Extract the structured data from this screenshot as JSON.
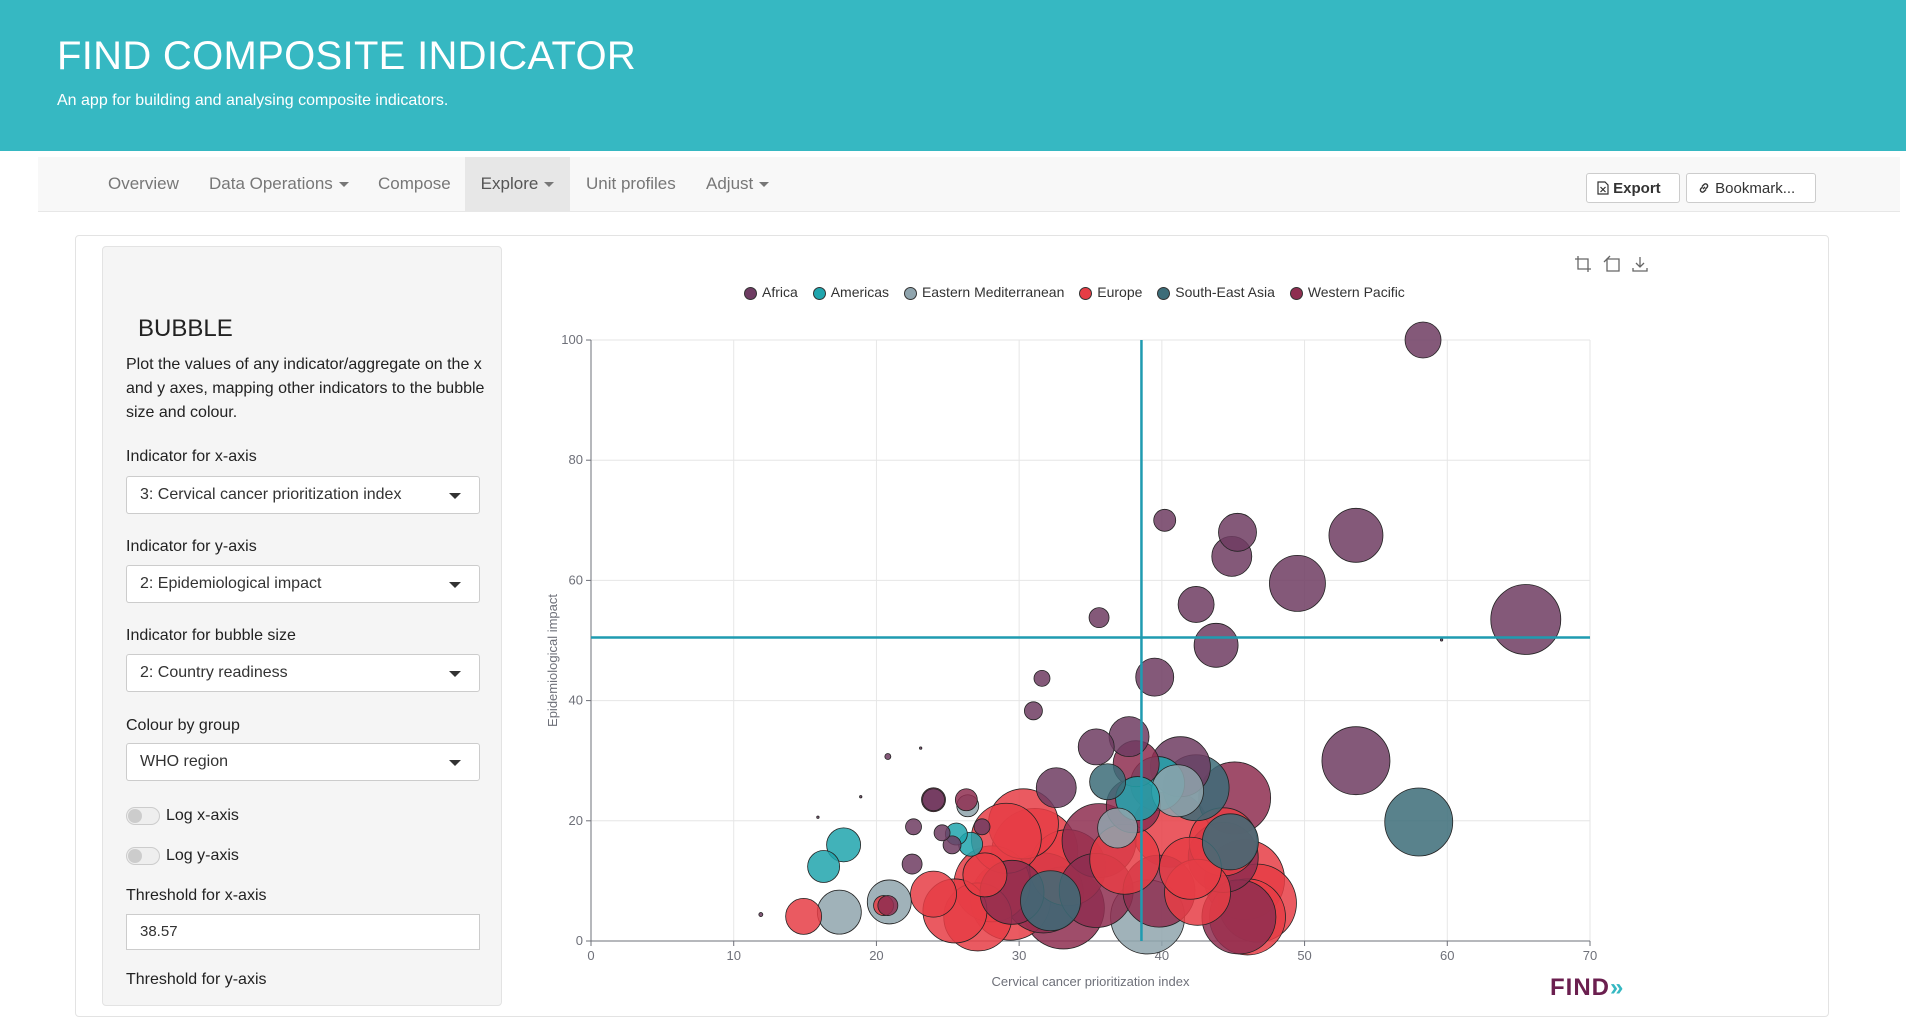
{
  "header": {
    "title": "FIND COMPOSITE INDICATOR",
    "subtitle": "An app for building and analysing composite indicators."
  },
  "nav": {
    "items": [
      {
        "label": "Overview",
        "dropdown": false
      },
      {
        "label": "Data Operations",
        "dropdown": true
      },
      {
        "label": "Compose",
        "dropdown": false
      },
      {
        "label": "Explore",
        "dropdown": true,
        "active": true
      },
      {
        "label": "Unit profiles",
        "dropdown": false
      },
      {
        "label": "Adjust",
        "dropdown": true
      }
    ],
    "export_label": "Export",
    "bookmark_label": "Bookmark..."
  },
  "sidebar": {
    "title": "BUBBLE",
    "description": "Plot the values of any indicator/aggregate on the x and y axes, mapping other indicators to the bubble size and colour.",
    "x_label": "Indicator for x-axis",
    "x_value": "3: Cervical cancer prioritization index",
    "y_label": "Indicator for y-axis",
    "y_value": "2: Epidemiological impact",
    "size_label": "Indicator for bubble size",
    "size_value": "2: Country readiness",
    "colour_label": "Colour by group",
    "colour_value": "WHO region",
    "log_x_label": "Log x-axis",
    "log_y_label": "Log y-axis",
    "threshold_x_label": "Threshold for x-axis",
    "threshold_x_value": "38.57",
    "threshold_y_label": "Threshold for y-axis"
  },
  "logo": {
    "text": "FIND",
    "mark": "»"
  },
  "chart_data": {
    "type": "scatter",
    "xlabel": "Cervical cancer prioritization index",
    "ylabel": "Epidemiological impact",
    "xlim": [
      0,
      70
    ],
    "ylim": [
      0,
      100
    ],
    "xticks": [
      0,
      10,
      20,
      30,
      40,
      50,
      60,
      70
    ],
    "yticks": [
      0,
      20,
      40,
      60,
      80,
      100
    ],
    "grid": true,
    "legend_position": "top",
    "threshold_x": 38.57,
    "threshold_y": 50.5,
    "series": [
      {
        "name": "Africa",
        "color": "#6e3c62",
        "points": [
          [
            58.3,
            100,
            18
          ],
          [
            40.2,
            70,
            11
          ],
          [
            45.3,
            68,
            19
          ],
          [
            53.6,
            67.5,
            27
          ],
          [
            44.9,
            64,
            20
          ],
          [
            49.5,
            59.5,
            28
          ],
          [
            42.4,
            56,
            18
          ],
          [
            65.5,
            53.5,
            35
          ],
          [
            35.6,
            53.8,
            10
          ],
          [
            43.8,
            49.2,
            22
          ],
          [
            59.6,
            50.1,
            0
          ],
          [
            39.5,
            43.9,
            19
          ],
          [
            31.6,
            43.7,
            8
          ],
          [
            31.0,
            38.3,
            9
          ],
          [
            37.7,
            34,
            20
          ],
          [
            53.6,
            30,
            34
          ],
          [
            35.4,
            32.3,
            18
          ],
          [
            41.3,
            29,
            30
          ],
          [
            32.6,
            25.5,
            20
          ],
          [
            24.0,
            23.5,
            11
          ],
          [
            27.4,
            19,
            8
          ],
          [
            24.6,
            18,
            8
          ],
          [
            22.6,
            19,
            8
          ],
          [
            25.3,
            16,
            9
          ],
          [
            22.5,
            12.8,
            10
          ],
          [
            18.9,
            24,
            1
          ],
          [
            20.8,
            30.7,
            3
          ],
          [
            23.1,
            32.1,
            1
          ],
          [
            11.9,
            4.4,
            2
          ],
          [
            15.9,
            20.6,
            1
          ]
        ]
      },
      {
        "name": "Americas",
        "color": "#20a5ad",
        "points": [
          [
            17.7,
            16,
            17
          ],
          [
            16.3,
            12.4,
            16
          ],
          [
            25.6,
            17.8,
            11
          ],
          [
            26.6,
            16.1,
            12
          ],
          [
            38.3,
            23.7,
            22
          ],
          [
            39.7,
            26.2,
            27
          ]
        ]
      },
      {
        "name": "Eastern Mediterranean",
        "color": "#8fa4ad",
        "points": [
          [
            26.4,
            22.5,
            11
          ],
          [
            20.9,
            6.5,
            22
          ],
          [
            17.4,
            4.8,
            22
          ],
          [
            39.0,
            4,
            37
          ],
          [
            41.1,
            25,
            26
          ],
          [
            36.9,
            18.8,
            20
          ]
        ]
      },
      {
        "name": "Europe",
        "color": "#e63d45",
        "points": [
          [
            14.9,
            4.1,
            18
          ],
          [
            20.5,
            5.9,
            10
          ],
          [
            27.1,
            4,
            34
          ],
          [
            25.5,
            5,
            32
          ],
          [
            29.4,
            6.8,
            40
          ],
          [
            31.1,
            14.9,
            43
          ],
          [
            33.4,
            12.2,
            38
          ],
          [
            28.1,
            9.5,
            38
          ],
          [
            30.3,
            19.5,
            35
          ],
          [
            42.5,
            8.1,
            33
          ],
          [
            44.3,
            16.5,
            34
          ],
          [
            45.8,
            10.2,
            40
          ],
          [
            46.0,
            4,
            38
          ],
          [
            46.7,
            6.3,
            39
          ],
          [
            40.6,
            18.6,
            38
          ],
          [
            37.4,
            13.6,
            35
          ],
          [
            24.0,
            7.8,
            23
          ],
          [
            27.6,
            11,
            22
          ],
          [
            29.1,
            17.1,
            35
          ],
          [
            42.0,
            12.1,
            31
          ]
        ]
      },
      {
        "name": "South-East Asia",
        "color": "#3c6c78",
        "points": [
          [
            58.0,
            19.8,
            34
          ],
          [
            36.2,
            26.5,
            18
          ],
          [
            42.4,
            25.5,
            33
          ],
          [
            44.8,
            16.5,
            28
          ],
          [
            32.2,
            6.7,
            30
          ]
        ]
      },
      {
        "name": "Western Pacific",
        "color": "#8e2e50",
        "points": [
          [
            45.1,
            23.8,
            36
          ],
          [
            38.2,
            29.5,
            23
          ],
          [
            38.0,
            22.5,
            27
          ],
          [
            35.6,
            16.7,
            37
          ],
          [
            39.8,
            8.3,
            36
          ],
          [
            44.3,
            13.9,
            35
          ],
          [
            31.7,
            8.0,
            40
          ],
          [
            35.4,
            8.4,
            37
          ],
          [
            33.1,
            5.5,
            41
          ],
          [
            29.5,
            8.1,
            32
          ],
          [
            45.4,
            4,
            37
          ],
          [
            20.8,
            5.9,
            10
          ],
          [
            24.0,
            23.5,
            12
          ],
          [
            26.3,
            23.5,
            11
          ]
        ]
      }
    ]
  }
}
